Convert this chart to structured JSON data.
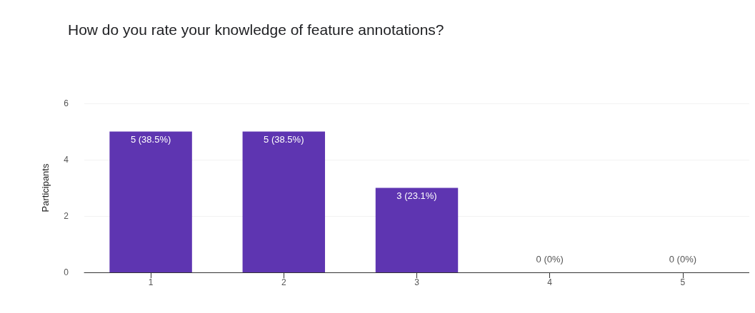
{
  "chart_data": {
    "type": "bar",
    "title": "How do you rate your knowledge of feature annotations?",
    "ylabel": "Participants",
    "categories": [
      "1",
      "2",
      "3",
      "4",
      "5"
    ],
    "values": [
      5,
      5,
      3,
      0,
      0
    ],
    "value_labels": [
      "5 (38.5%)",
      "5 (38.5%)",
      "3 (23.1%)",
      "0 (0%)",
      "0 (0%)"
    ],
    "color": "#5e35b1",
    "ylim": [
      0,
      6
    ],
    "yticks": [
      0,
      2,
      4,
      6
    ],
    "grid": "y"
  }
}
